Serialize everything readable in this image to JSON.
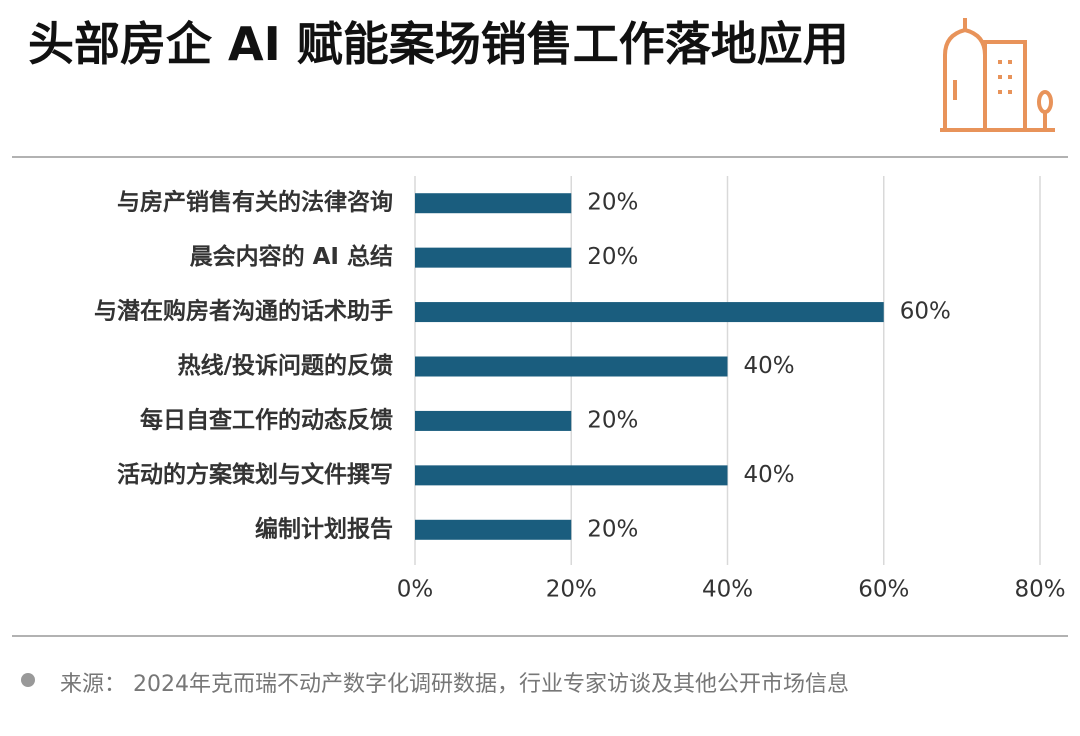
{
  "chart_data": {
    "type": "bar",
    "orientation": "horizontal",
    "title": "头部房企 AI 赋能案场销售工作落地应用",
    "categories": [
      "与房产销售有关的法律咨询",
      "晨会内容的 AI 总结",
      "与潜在购房者沟通的话术助手",
      "热线/投诉问题的反馈",
      "每日自查工作的动态反馈",
      "活动的方案策划与文件撰写",
      "编制计划报告"
    ],
    "values": [
      20,
      20,
      60,
      40,
      20,
      40,
      20
    ],
    "value_labels": [
      "20%",
      "20%",
      "60%",
      "40%",
      "20%",
      "40%",
      "20%"
    ],
    "color": "#1a5d7e",
    "xlim": [
      0,
      80
    ],
    "xticks": [
      {
        "value": 0,
        "label": "0%"
      },
      {
        "value": 20,
        "label": "20%"
      },
      {
        "value": 40,
        "label": "40%"
      },
      {
        "value": 60,
        "label": "60%"
      },
      {
        "value": 80,
        "label": "80%"
      }
    ],
    "grid": true,
    "source": "来源： 2024年克而瑞不动产数字化调研数据，行业专家访谈及其他公开市场信息"
  }
}
